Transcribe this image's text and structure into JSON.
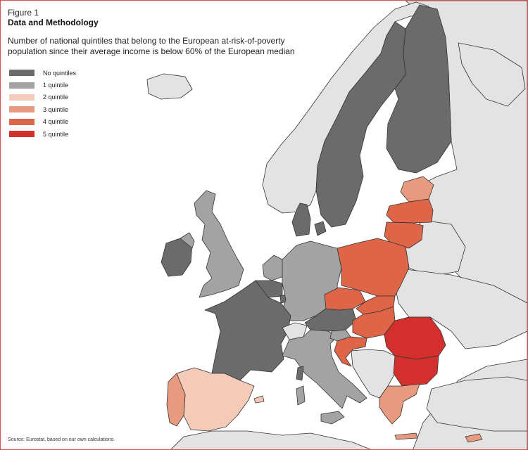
{
  "figure": {
    "label": "Figure 1",
    "title": "Data and Methodology",
    "subtitle": "Number of national quintiles that belong to the European at-risk-of-poverty population since their average income is below 60% of the European median"
  },
  "legend": [
    {
      "label": "No quintiles",
      "color": "#6b6b6b"
    },
    {
      "label": "1 quintile",
      "color": "#a3a3a3"
    },
    {
      "label": "2 quintile",
      "color": "#f4cbb8"
    },
    {
      "label": "3 quintile",
      "color": "#e89a7f"
    },
    {
      "label": "4 quintile",
      "color": "#df6549"
    },
    {
      "label": "5 quintile",
      "color": "#d32f2c"
    }
  ],
  "colors": {
    "non_eu": "#e3e3e3",
    "sea": "#ffffff",
    "border": "#333333",
    "frame": "#d9534f"
  },
  "source": "Source: Eurostat, based on our own calculations.",
  "regions": [
    {
      "name": "norway",
      "quintiles": 0,
      "eu": false
    },
    {
      "name": "sweden",
      "quintiles": 0
    },
    {
      "name": "finland",
      "quintiles": 0
    },
    {
      "name": "denmark",
      "quintiles": 0
    },
    {
      "name": "estonia",
      "quintiles": 3
    },
    {
      "name": "latvia",
      "quintiles": 4
    },
    {
      "name": "lithuania",
      "quintiles": 4
    },
    {
      "name": "ireland",
      "quintiles": 0
    },
    {
      "name": "united-kingdom",
      "quintiles": 1
    },
    {
      "name": "netherlands",
      "quintiles": 1
    },
    {
      "name": "belgium",
      "quintiles": 0
    },
    {
      "name": "luxembourg",
      "quintiles": 0
    },
    {
      "name": "germany",
      "quintiles": 1
    },
    {
      "name": "france",
      "quintiles": 0
    },
    {
      "name": "switzerland",
      "quintiles": 0,
      "eu": false
    },
    {
      "name": "austria",
      "quintiles": 0
    },
    {
      "name": "italy",
      "quintiles": 1
    },
    {
      "name": "sardinia",
      "quintiles": 1
    },
    {
      "name": "corsica",
      "quintiles": 0
    },
    {
      "name": "sicily",
      "quintiles": 1
    },
    {
      "name": "poland",
      "quintiles": 4
    },
    {
      "name": "czech-republic",
      "quintiles": 4
    },
    {
      "name": "slovakia",
      "quintiles": 4
    },
    {
      "name": "hungary",
      "quintiles": 4
    },
    {
      "name": "slovenia",
      "quintiles": 1
    },
    {
      "name": "croatia",
      "quintiles": 4
    },
    {
      "name": "romania",
      "quintiles": 5
    },
    {
      "name": "bulgaria",
      "quintiles": 5
    },
    {
      "name": "greece",
      "quintiles": 3
    },
    {
      "name": "crete",
      "quintiles": 3
    },
    {
      "name": "spain",
      "quintiles": 2
    },
    {
      "name": "portugal",
      "quintiles": 3
    },
    {
      "name": "balearics",
      "quintiles": 2
    },
    {
      "name": "cyprus",
      "quintiles": 3
    }
  ]
}
